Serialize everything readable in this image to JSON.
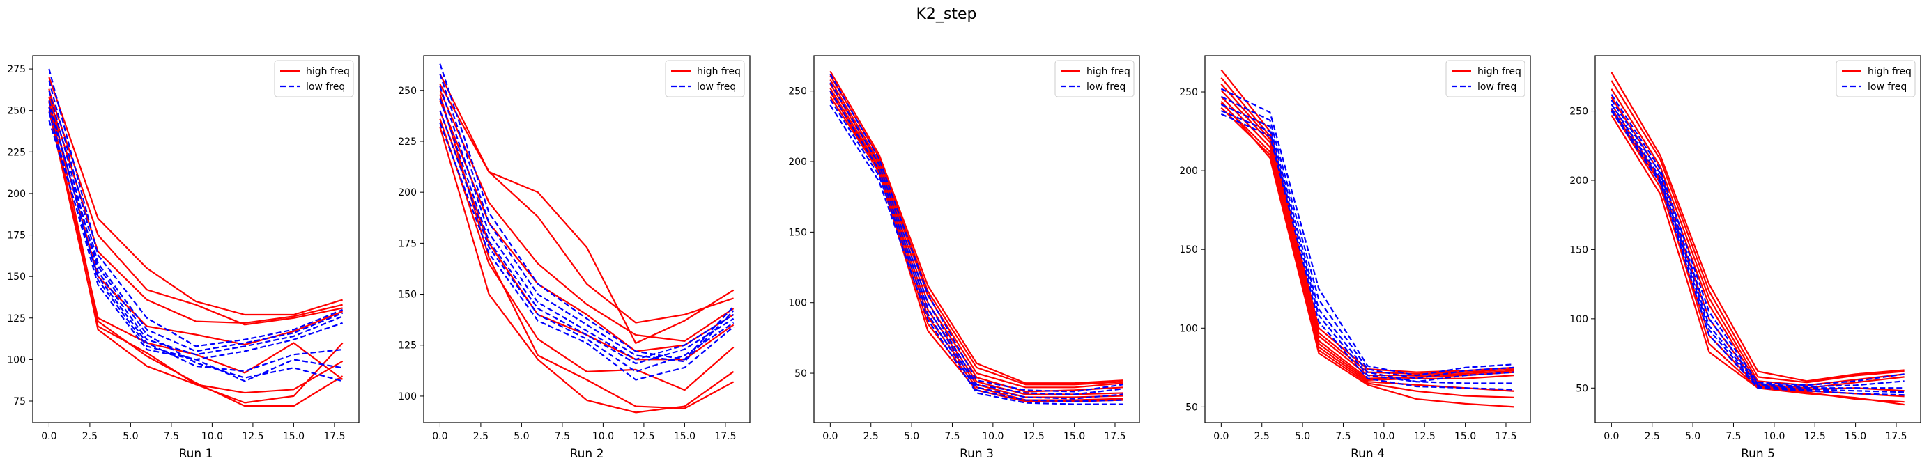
{
  "figure": {
    "title": "K2_step",
    "colors": {
      "high": "#ff0000",
      "low": "#0000ff"
    }
  },
  "chart_data": [
    {
      "type": "line",
      "xlabel": "Run 1",
      "ylabel": "",
      "xlim": [
        -1,
        19
      ],
      "ylim": [
        62,
        283
      ],
      "xticks": [
        0.0,
        2.5,
        5.0,
        7.5,
        10.0,
        12.5,
        15.0,
        17.5
      ],
      "yticks": [
        75,
        100,
        125,
        150,
        175,
        200,
        225,
        250,
        275
      ],
      "grid": false,
      "legend": {
        "position": "top-right",
        "entries": [
          "high freq",
          "low freq"
        ]
      },
      "x": [
        0,
        3,
        6,
        9,
        12,
        15,
        18
      ],
      "series": [
        {
          "group": "high",
          "values": [
            270,
            185,
            155,
            135,
            127,
            127,
            136
          ]
        },
        {
          "group": "high",
          "values": [
            262,
            175,
            142,
            133,
            121,
            125,
            131
          ]
        },
        {
          "group": "high",
          "values": [
            258,
            165,
            136,
            123,
            122,
            126,
            133
          ]
        },
        {
          "group": "high",
          "values": [
            255,
            150,
            120,
            115,
            109,
            117,
            129
          ]
        },
        {
          "group": "high",
          "values": [
            252,
            125,
            110,
            103,
            92,
            110,
            88
          ]
        },
        {
          "group": "high",
          "values": [
            250,
            120,
            104,
            85,
            80,
            82,
            99
          ]
        },
        {
          "group": "high",
          "values": [
            256,
            118,
            96,
            85,
            74,
            78,
            110
          ]
        },
        {
          "group": "high",
          "values": [
            263,
            123,
            102,
            86,
            72,
            72,
            90
          ]
        },
        {
          "group": "low",
          "values": [
            275,
            163,
            125,
            108,
            112,
            118,
            130
          ]
        },
        {
          "group": "low",
          "values": [
            268,
            158,
            118,
            105,
            110,
            116,
            128
          ]
        },
        {
          "group": "low",
          "values": [
            262,
            153,
            112,
            103,
            108,
            114,
            126
          ]
        },
        {
          "group": "low",
          "values": [
            256,
            148,
            108,
            100,
            105,
            112,
            122
          ]
        },
        {
          "group": "low",
          "values": [
            249,
            145,
            106,
            100,
            87,
            100,
            95
          ]
        },
        {
          "group": "low",
          "values": [
            244,
            150,
            110,
            96,
            93,
            103,
            106
          ]
        },
        {
          "group": "low",
          "values": [
            252,
            156,
            115,
            98,
            89,
            95,
            87
          ]
        }
      ]
    },
    {
      "type": "line",
      "xlabel": "Run 2",
      "ylabel": "",
      "xlim": [
        -1,
        19
      ],
      "ylim": [
        87,
        267
      ],
      "xticks": [
        0.0,
        2.5,
        5.0,
        7.5,
        10.0,
        12.5,
        15.0,
        17.5
      ],
      "yticks": [
        100,
        125,
        150,
        175,
        200,
        225,
        250
      ],
      "grid": false,
      "legend": {
        "position": "top-right",
        "entries": [
          "high freq",
          "low freq"
        ]
      },
      "x": [
        0,
        3,
        6,
        9,
        12,
        15,
        18
      ],
      "series": [
        {
          "group": "high",
          "values": [
            258,
            210,
            200,
            173,
            126,
            137,
            152
          ]
        },
        {
          "group": "high",
          "values": [
            253,
            210,
            188,
            155,
            136,
            140,
            148
          ]
        },
        {
          "group": "high",
          "values": [
            250,
            195,
            165,
            145,
            130,
            127,
            143
          ]
        },
        {
          "group": "high",
          "values": [
            245,
            185,
            155,
            140,
            122,
            125,
            140
          ]
        },
        {
          "group": "high",
          "values": [
            240,
            175,
            140,
            130,
            118,
            118,
            135
          ]
        },
        {
          "group": "high",
          "values": [
            236,
            165,
            128,
            112,
            113,
            103,
            124
          ]
        },
        {
          "group": "high",
          "values": [
            232,
            150,
            118,
            98,
            92,
            95,
            112
          ]
        },
        {
          "group": "high",
          "values": [
            248,
            168,
            120,
            108,
            95,
            94,
            107
          ]
        },
        {
          "group": "low",
          "values": [
            263,
            190,
            155,
            138,
            122,
            118,
            144
          ]
        },
        {
          "group": "low",
          "values": [
            258,
            185,
            150,
            135,
            120,
            117,
            142
          ]
        },
        {
          "group": "low",
          "values": [
            252,
            180,
            146,
            132,
            118,
            125,
            140
          ]
        },
        {
          "group": "low",
          "values": [
            246,
            176,
            143,
            130,
            116,
            123,
            138
          ]
        },
        {
          "group": "low",
          "values": [
            240,
            173,
            140,
            128,
            112,
            120,
            136
          ]
        },
        {
          "group": "low",
          "values": [
            234,
            170,
            137,
            126,
            108,
            114,
            134
          ]
        }
      ]
    },
    {
      "type": "line",
      "xlabel": "Run 3",
      "ylabel": "",
      "xlim": [
        -1,
        19
      ],
      "ylim": [
        15,
        275
      ],
      "xticks": [
        0.0,
        2.5,
        5.0,
        7.5,
        10.0,
        12.5,
        15.0,
        17.5
      ],
      "yticks": [
        50,
        100,
        150,
        200,
        250
      ],
      "grid": false,
      "legend": {
        "position": "top-right",
        "entries": [
          "high freq",
          "low freq"
        ]
      },
      "x": [
        0,
        3,
        6,
        9,
        12,
        15,
        18
      ],
      "series": [
        {
          "group": "high",
          "values": [
            264,
            205,
            112,
            57,
            43,
            43,
            45
          ]
        },
        {
          "group": "high",
          "values": [
            261,
            203,
            108,
            54,
            42,
            42,
            44
          ]
        },
        {
          "group": "high",
          "values": [
            258,
            200,
            105,
            50,
            40,
            40,
            43
          ]
        },
        {
          "group": "high",
          "values": [
            255,
            198,
            100,
            47,
            37,
            38,
            40
          ]
        },
        {
          "group": "high",
          "values": [
            252,
            196,
            95,
            44,
            35,
            35,
            36
          ]
        },
        {
          "group": "high",
          "values": [
            249,
            195,
            90,
            42,
            33,
            33,
            34
          ]
        },
        {
          "group": "high",
          "values": [
            246,
            193,
            85,
            40,
            31,
            31,
            32
          ]
        },
        {
          "group": "high",
          "values": [
            250,
            192,
            80,
            38,
            30,
            30,
            31
          ]
        },
        {
          "group": "low",
          "values": [
            262,
            202,
            106,
            45,
            38,
            37,
            42
          ]
        },
        {
          "group": "low",
          "values": [
            256,
            198,
            100,
            42,
            36,
            35,
            39
          ]
        },
        {
          "group": "low",
          "values": [
            250,
            194,
            96,
            40,
            33,
            32,
            35
          ]
        },
        {
          "group": "low",
          "values": [
            244,
            190,
            92,
            38,
            31,
            30,
            31
          ]
        },
        {
          "group": "low",
          "values": [
            240,
            186,
            88,
            36,
            29,
            28,
            28
          ]
        }
      ]
    },
    {
      "type": "line",
      "xlabel": "Run 4",
      "ylabel": "",
      "xlim": [
        -1,
        19
      ],
      "ylim": [
        40,
        273
      ],
      "xticks": [
        0.0,
        2.5,
        5.0,
        7.5,
        10.0,
        12.5,
        15.0,
        17.5
      ],
      "yticks": [
        50,
        100,
        150,
        200,
        250
      ],
      "grid": false,
      "legend": {
        "position": "top-right",
        "entries": [
          "high freq",
          "low freq"
        ]
      },
      "x": [
        0,
        3,
        6,
        9,
        12,
        15,
        18
      ],
      "series": [
        {
          "group": "high",
          "values": [
            264,
            225,
            100,
            74,
            72,
            73,
            75
          ]
        },
        {
          "group": "high",
          "values": [
            259,
            222,
            97,
            72,
            71,
            72,
            74
          ]
        },
        {
          "group": "high",
          "values": [
            255,
            220,
            95,
            70,
            70,
            71,
            73
          ]
        },
        {
          "group": "high",
          "values": [
            251,
            218,
            92,
            68,
            69,
            70,
            72
          ]
        },
        {
          "group": "high",
          "values": [
            247,
            215,
            90,
            67,
            68,
            68,
            70
          ]
        },
        {
          "group": "high",
          "values": [
            243,
            212,
            88,
            66,
            64,
            62,
            60
          ]
        },
        {
          "group": "high",
          "values": [
            240,
            210,
            86,
            65,
            60,
            57,
            56
          ]
        },
        {
          "group": "high",
          "values": [
            244,
            208,
            84,
            64,
            55,
            52,
            50
          ]
        },
        {
          "group": "low",
          "values": [
            252,
            237,
            125,
            76,
            70,
            75,
            77
          ]
        },
        {
          "group": "low",
          "values": [
            247,
            232,
            118,
            74,
            68,
            73,
            75
          ]
        },
        {
          "group": "low",
          "values": [
            242,
            228,
            112,
            72,
            66,
            70,
            72
          ]
        },
        {
          "group": "low",
          "values": [
            238,
            225,
            108,
            70,
            66,
            65,
            65
          ]
        },
        {
          "group": "low",
          "values": [
            236,
            222,
            104,
            68,
            63,
            62,
            61
          ]
        }
      ]
    },
    {
      "type": "line",
      "xlabel": "Run 5",
      "ylabel": "",
      "xlim": [
        -1,
        19
      ],
      "ylim": [
        25,
        290
      ],
      "xticks": [
        0.0,
        2.5,
        5.0,
        7.5,
        10.0,
        12.5,
        15.0,
        17.5
      ],
      "yticks": [
        50,
        100,
        150,
        200,
        250
      ],
      "grid": false,
      "legend": {
        "position": "top-right",
        "entries": [
          "high freq",
          "low freq"
        ]
      },
      "x": [
        0,
        3,
        6,
        9,
        12,
        15,
        18
      ],
      "series": [
        {
          "group": "high",
          "values": [
            278,
            218,
            125,
            62,
            55,
            60,
            63
          ]
        },
        {
          "group": "high",
          "values": [
            272,
            215,
            120,
            58,
            54,
            59,
            62
          ]
        },
        {
          "group": "high",
          "values": [
            266,
            210,
            115,
            55,
            52,
            56,
            60
          ]
        },
        {
          "group": "high",
          "values": [
            260,
            205,
            110,
            53,
            50,
            54,
            58
          ]
        },
        {
          "group": "high",
          "values": [
            255,
            200,
            100,
            52,
            49,
            50,
            48
          ]
        },
        {
          "group": "high",
          "values": [
            251,
            195,
            88,
            51,
            48,
            46,
            44
          ]
        },
        {
          "group": "high",
          "values": [
            247,
            190,
            76,
            50,
            47,
            42,
            40
          ]
        },
        {
          "group": "high",
          "values": [
            252,
            198,
            82,
            50,
            46,
            43,
            38
          ]
        },
        {
          "group": "low",
          "values": [
            262,
            208,
            105,
            54,
            52,
            55,
            60
          ]
        },
        {
          "group": "low",
          "values": [
            258,
            205,
            100,
            53,
            51,
            52,
            55
          ]
        },
        {
          "group": "low",
          "values": [
            255,
            202,
            95,
            52,
            50,
            50,
            50
          ]
        },
        {
          "group": "low",
          "values": [
            252,
            200,
            92,
            51,
            49,
            48,
            47
          ]
        },
        {
          "group": "low",
          "values": [
            250,
            198,
            88,
            50,
            48,
            46,
            45
          ]
        }
      ]
    }
  ]
}
